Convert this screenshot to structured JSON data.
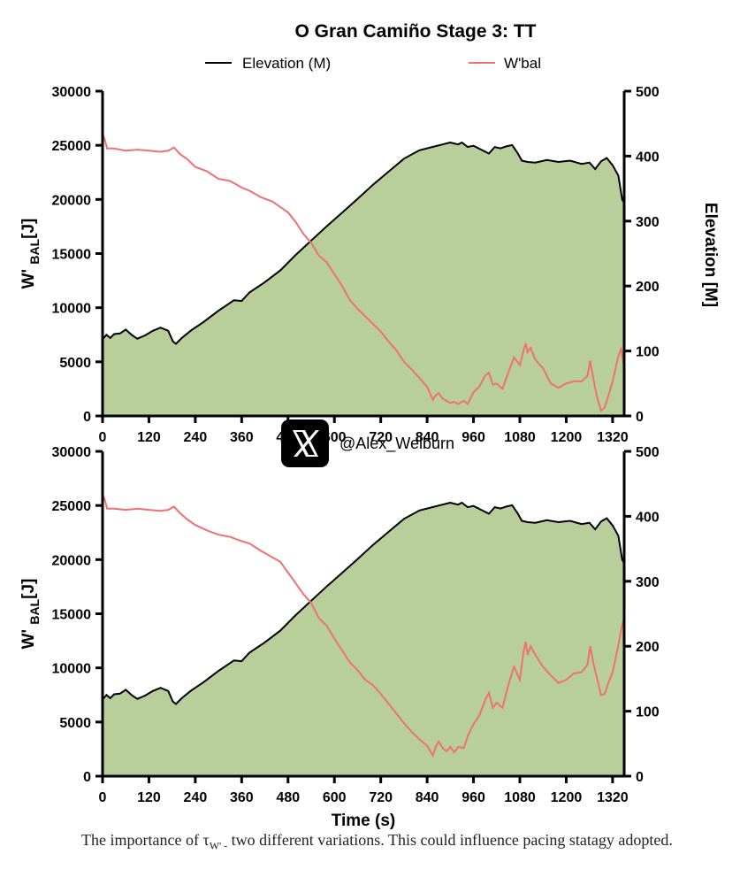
{
  "title": "O Gran Camiño Stage 3: TT",
  "legend": {
    "elevation_label": "Elevation (M)",
    "wbal_label": "W'bal",
    "placement": "top-center"
  },
  "watermark": {
    "icon": "x-logo-icon",
    "handle": "@Alex_Welburn"
  },
  "colors": {
    "elevation_line": "#000000",
    "elevation_fill": "#b8cf9c",
    "wbal_line": "#f07070"
  },
  "caption": {
    "before": "The importance of τ",
    "subscript": "W' -",
    "after": " two different variations. This could influence pacing statagy adopted."
  },
  "chart_data": [
    {
      "type": "area",
      "panel": "top",
      "title": "O Gran Camiño Stage 3: TT",
      "xlabel": "",
      "ylabel_left": "W' BAL[J]",
      "ylabel_right": "Elevation [M]",
      "xlim": [
        0,
        1350
      ],
      "ylim_left": [
        0,
        30000
      ],
      "ylim_right": [
        0,
        500
      ],
      "x_ticks": [
        0,
        120,
        240,
        360,
        480,
        600,
        720,
        840,
        960,
        1080,
        1200,
        1320
      ],
      "y_ticks_left": [
        0,
        5000,
        10000,
        15000,
        20000,
        25000,
        30000
      ],
      "y_ticks_right": [
        0,
        100,
        200,
        300,
        400,
        500
      ],
      "grid": false,
      "series": [
        {
          "name": "Elevation (M)",
          "axis": "right",
          "x": [
            0,
            10,
            20,
            30,
            45,
            60,
            75,
            90,
            110,
            130,
            150,
            170,
            182,
            190,
            205,
            230,
            260,
            300,
            340,
            360,
            380,
            420,
            460,
            500,
            540,
            580,
            620,
            660,
            700,
            740,
            780,
            820,
            860,
            880,
            900,
            920,
            930,
            945,
            960,
            980,
            1000,
            1015,
            1030,
            1045,
            1060,
            1075,
            1085,
            1100,
            1120,
            1150,
            1180,
            1210,
            1240,
            1260,
            1275,
            1290,
            1305,
            1320,
            1335,
            1345,
            1350
          ],
          "y": [
            118,
            125,
            120,
            126,
            127,
            133,
            125,
            119,
            124,
            131,
            136,
            131,
            115,
            111,
            120,
            132,
            144,
            162,
            178,
            177,
            190,
            206,
            224,
            248,
            270,
            292,
            313,
            334,
            356,
            376,
            396,
            409,
            415,
            418,
            421,
            418,
            421,
            414,
            416,
            410,
            404,
            414,
            412,
            415,
            417,
            404,
            393,
            391,
            390,
            394,
            391,
            393,
            388,
            390,
            380,
            392,
            397,
            386,
            370,
            333,
            328
          ]
        },
        {
          "name": "W'bal",
          "axis": "left",
          "x": [
            0,
            5,
            12,
            30,
            60,
            90,
            120,
            150,
            170,
            185,
            200,
            220,
            240,
            270,
            300,
            330,
            360,
            380,
            410,
            440,
            460,
            480,
            500,
            520,
            540,
            560,
            580,
            600,
            620,
            640,
            660,
            680,
            700,
            720,
            740,
            760,
            780,
            800,
            820,
            840,
            855,
            862,
            870,
            880,
            890,
            900,
            910,
            920,
            935,
            945,
            960,
            975,
            990,
            1000,
            1010,
            1020,
            1035,
            1050,
            1065,
            1080,
            1090,
            1095,
            1100,
            1108,
            1120,
            1140,
            1160,
            1180,
            1200,
            1220,
            1240,
            1255,
            1262,
            1270,
            1280,
            1290,
            1300,
            1308,
            1320,
            1335,
            1342,
            1348,
            1350
          ],
          "y": [
            26100,
            25600,
            24700,
            24700,
            24500,
            24600,
            24500,
            24400,
            24500,
            24800,
            24200,
            23700,
            23000,
            22600,
            21900,
            21700,
            21100,
            20800,
            20200,
            19800,
            19300,
            18800,
            17900,
            16800,
            16000,
            14800,
            14200,
            13100,
            12000,
            10700,
            9900,
            9200,
            8500,
            7800,
            6900,
            6100,
            5000,
            4300,
            3500,
            2700,
            1500,
            1900,
            2100,
            1600,
            1400,
            1200,
            1300,
            1100,
            1400,
            1100,
            2200,
            2700,
            3700,
            4000,
            2900,
            3000,
            2500,
            4000,
            5400,
            4700,
            6100,
            6700,
            5900,
            6300,
            5200,
            4400,
            3000,
            2600,
            3000,
            3200,
            3200,
            3700,
            5100,
            3500,
            1700,
            500,
            800,
            1700,
            3200,
            5500,
            6200,
            4900,
            5400
          ]
        }
      ]
    },
    {
      "type": "area",
      "panel": "bottom",
      "title": "",
      "xlabel": "Time (s)",
      "ylabel_left": "W' BAL[J]",
      "ylabel_right": "",
      "xlim": [
        0,
        1350
      ],
      "ylim_left": [
        0,
        30000
      ],
      "ylim_right": [
        0,
        500
      ],
      "x_ticks": [
        0,
        120,
        240,
        360,
        480,
        600,
        720,
        840,
        960,
        1080,
        1200,
        1320
      ],
      "y_ticks_left": [
        0,
        5000,
        10000,
        15000,
        20000,
        25000,
        30000
      ],
      "y_ticks_right": [
        0,
        100,
        200,
        300,
        400,
        500
      ],
      "grid": false,
      "series": [
        {
          "name": "Elevation (M)",
          "axis": "right",
          "x": [
            0,
            10,
            20,
            30,
            45,
            60,
            75,
            90,
            110,
            130,
            150,
            170,
            182,
            190,
            205,
            230,
            260,
            300,
            340,
            360,
            380,
            420,
            460,
            500,
            540,
            580,
            620,
            660,
            700,
            740,
            780,
            820,
            860,
            880,
            900,
            920,
            930,
            945,
            960,
            980,
            1000,
            1015,
            1030,
            1045,
            1060,
            1075,
            1085,
            1100,
            1120,
            1150,
            1180,
            1210,
            1240,
            1260,
            1275,
            1290,
            1305,
            1320,
            1335,
            1345,
            1350
          ],
          "y": [
            118,
            125,
            120,
            126,
            127,
            133,
            125,
            119,
            124,
            131,
            136,
            131,
            115,
            111,
            120,
            132,
            144,
            162,
            178,
            177,
            190,
            206,
            224,
            248,
            270,
            292,
            313,
            334,
            356,
            376,
            396,
            409,
            415,
            418,
            421,
            418,
            421,
            414,
            416,
            410,
            404,
            414,
            412,
            415,
            417,
            404,
            393,
            391,
            390,
            394,
            391,
            393,
            388,
            390,
            380,
            392,
            397,
            386,
            370,
            333,
            328
          ]
        },
        {
          "name": "W'bal",
          "axis": "left",
          "x": [
            0,
            5,
            12,
            30,
            60,
            90,
            120,
            150,
            170,
            185,
            200,
            220,
            240,
            270,
            300,
            330,
            360,
            380,
            410,
            440,
            460,
            480,
            500,
            520,
            540,
            560,
            580,
            600,
            620,
            640,
            660,
            680,
            700,
            720,
            740,
            760,
            780,
            800,
            820,
            840,
            855,
            862,
            870,
            880,
            890,
            900,
            910,
            920,
            935,
            945,
            960,
            975,
            990,
            1000,
            1010,
            1020,
            1035,
            1050,
            1065,
            1080,
            1090,
            1095,
            1100,
            1108,
            1120,
            1140,
            1160,
            1180,
            1200,
            1220,
            1240,
            1255,
            1262,
            1270,
            1280,
            1290,
            1300,
            1308,
            1320,
            1335,
            1342,
            1348,
            1350
          ],
          "y": [
            26100,
            25600,
            24700,
            24700,
            24600,
            24700,
            24600,
            24500,
            24600,
            24900,
            24300,
            23700,
            23200,
            22700,
            22300,
            22100,
            21700,
            21500,
            20800,
            20200,
            19800,
            18800,
            17800,
            16800,
            16000,
            14600,
            13900,
            12700,
            11600,
            10500,
            9800,
            8900,
            8400,
            7600,
            6700,
            5800,
            4900,
            4100,
            3400,
            2800,
            1900,
            2700,
            3200,
            2600,
            2300,
            2700,
            2200,
            2700,
            2600,
            3700,
            4800,
            5600,
            7000,
            7700,
            6300,
            6800,
            6300,
            8400,
            10100,
            8900,
            11600,
            12400,
            11200,
            12000,
            11200,
            10100,
            9300,
            8600,
            8900,
            9500,
            9600,
            10300,
            12000,
            10500,
            9000,
            7500,
            7600,
            8500,
            9600,
            12100,
            13500,
            14400,
            13800
          ]
        }
      ]
    }
  ]
}
